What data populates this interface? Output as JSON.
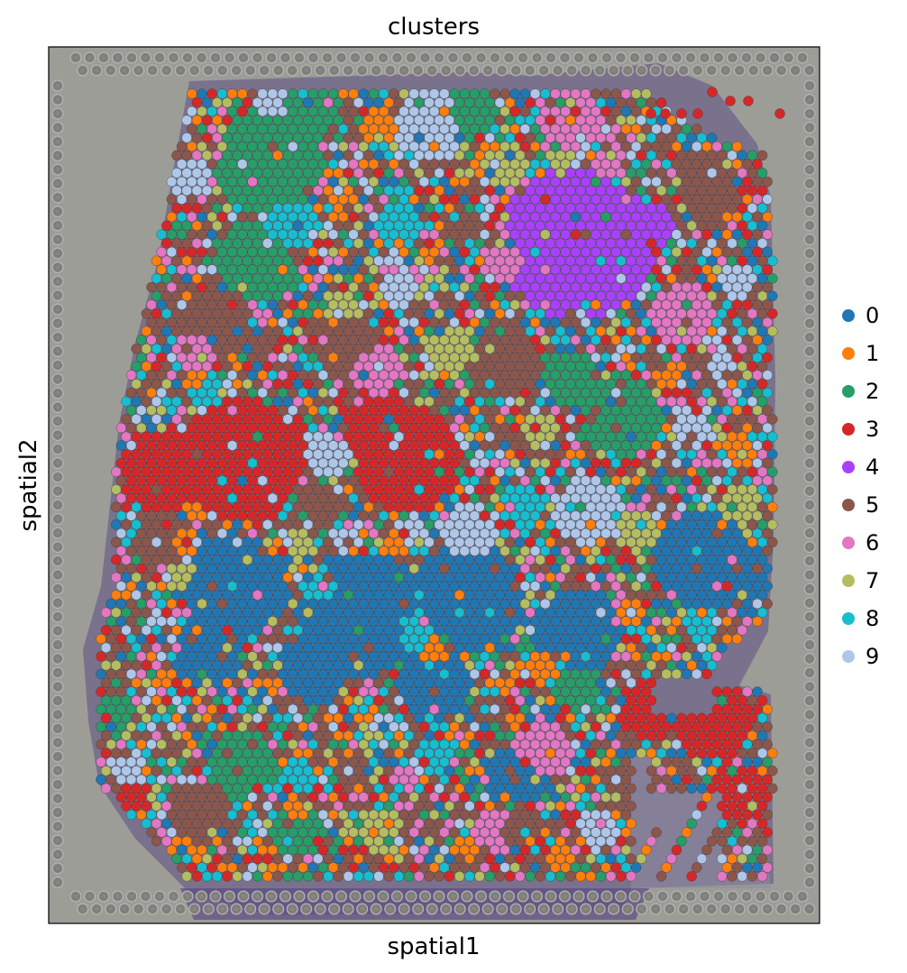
{
  "chart_data": {
    "type": "scatter",
    "title": "clusters",
    "xlabel": "spatial1",
    "ylabel": "spatial2",
    "grid": false,
    "legend_position": "right",
    "ticks": "none",
    "background": "tissue histology image (H&E, purple stained tissue on grey slide with fiducial dot border)",
    "legend": [
      {
        "label": "0",
        "color": "#1f77b4"
      },
      {
        "label": "1",
        "color": "#ff7f0e"
      },
      {
        "label": "2",
        "color": "#279e68"
      },
      {
        "label": "3",
        "color": "#d62728"
      },
      {
        "label": "4",
        "color": "#aa40fc"
      },
      {
        "label": "5",
        "color": "#8c564b"
      },
      {
        "label": "6",
        "color": "#e377c2"
      },
      {
        "label": "7",
        "color": "#b5bd61"
      },
      {
        "label": "8",
        "color": "#17becf"
      },
      {
        "label": "9",
        "color": "#aec7e8"
      }
    ]
  }
}
